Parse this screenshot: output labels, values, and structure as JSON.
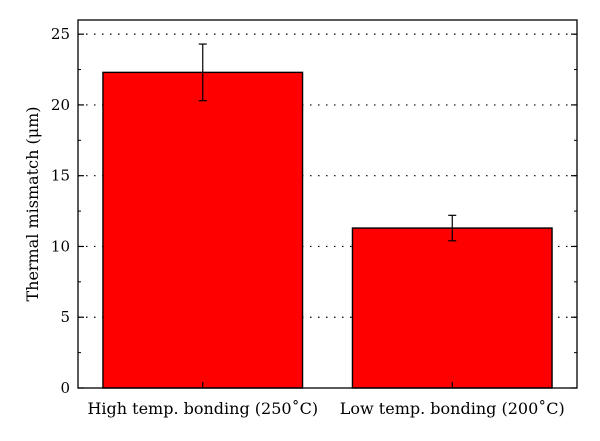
{
  "chart_data": {
    "type": "bar",
    "categories": [
      "High temp. bonding (250˚C)",
      "Low temp. bonding (200˚C)"
    ],
    "series": [
      {
        "values": [
          22.3,
          11.3
        ],
        "error": [
          2.0,
          0.9
        ]
      }
    ],
    "xlabel": "",
    "ylabel": "Thermal mismatch (μm)",
    "ylim": [
      0,
      26
    ],
    "yticks": [
      0,
      5,
      10,
      15,
      20,
      25
    ],
    "grid": "horizontal dotted",
    "bar_color": "#ff0000",
    "edge_color": "#000000"
  }
}
